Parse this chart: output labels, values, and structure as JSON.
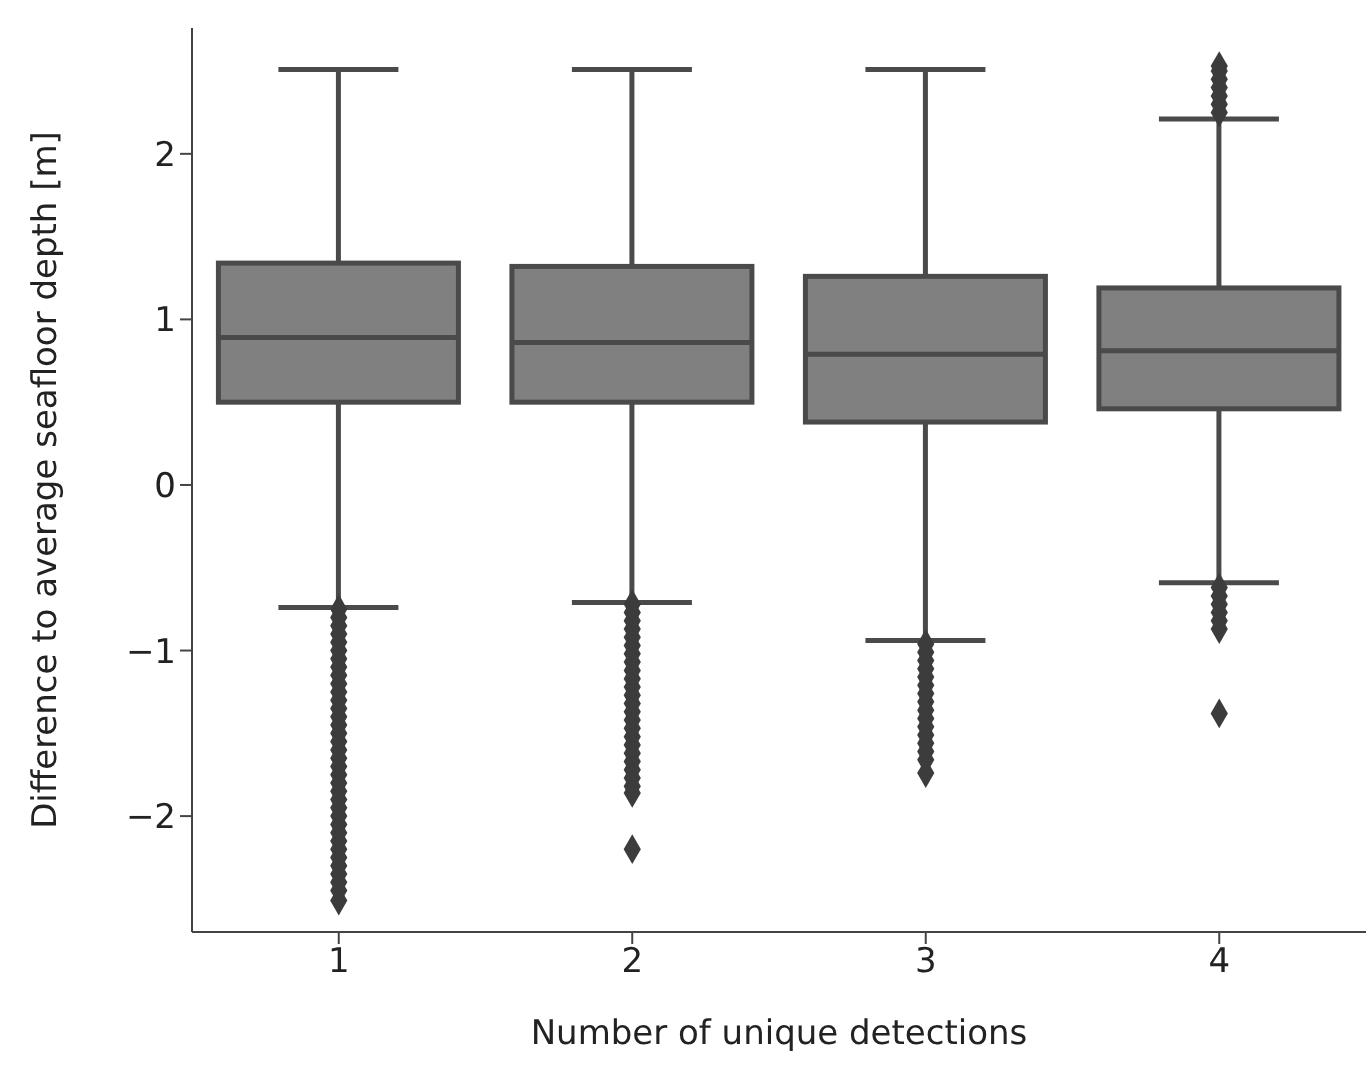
{
  "chart_data": {
    "type": "box",
    "xlabel": "Number of unique detections",
    "ylabel": "Difference to average seafloor depth [m]",
    "categories": [
      "1",
      "2",
      "3",
      "4"
    ],
    "color": "#808080",
    "marker": "diamond",
    "boxes": [
      {
        "low": -0.74,
        "q1": 0.5,
        "median": 0.89,
        "q3": 1.34,
        "high": 2.51,
        "outliers": [
          -0.75,
          -0.8,
          -0.85,
          -0.9,
          -0.95,
          -1.0,
          -1.05,
          -1.1,
          -1.15,
          -1.2,
          -1.25,
          -1.3,
          -1.35,
          -1.4,
          -1.45,
          -1.5,
          -1.55,
          -1.6,
          -1.65,
          -1.7,
          -1.75,
          -1.8,
          -1.85,
          -1.9,
          -1.95,
          -2.0,
          -2.05,
          -2.1,
          -2.15,
          -2.2,
          -2.25,
          -2.3,
          -2.35,
          -2.4,
          -2.45,
          -2.51
        ]
      },
      {
        "low": -0.71,
        "q1": 0.5,
        "median": 0.86,
        "q3": 1.32,
        "high": 2.51,
        "outliers": [
          -0.72,
          -0.77,
          -0.82,
          -0.87,
          -0.92,
          -0.97,
          -1.02,
          -1.07,
          -1.12,
          -1.17,
          -1.22,
          -1.27,
          -1.32,
          -1.37,
          -1.42,
          -1.47,
          -1.52,
          -1.57,
          -1.62,
          -1.67,
          -1.72,
          -1.77,
          -1.82,
          -1.86,
          -2.2
        ]
      },
      {
        "low": -0.94,
        "q1": 0.38,
        "median": 0.79,
        "q3": 1.26,
        "high": 2.51,
        "outliers": [
          -0.96,
          -1.01,
          -1.06,
          -1.11,
          -1.16,
          -1.21,
          -1.26,
          -1.31,
          -1.36,
          -1.41,
          -1.46,
          -1.51,
          -1.56,
          -1.61,
          -1.66,
          -1.74
        ]
      },
      {
        "low": -0.59,
        "q1": 0.46,
        "median": 0.81,
        "q3": 1.19,
        "high": 2.21,
        "outliers": [
          2.25,
          2.3,
          2.35,
          2.4,
          2.45,
          2.5,
          2.53,
          -0.62,
          -0.67,
          -0.72,
          -0.77,
          -0.82,
          -0.87,
          -1.38
        ]
      }
    ],
    "ylim": [
      -2.7,
      2.76
    ],
    "yticks": [
      -2,
      -1,
      0,
      1,
      2
    ]
  }
}
